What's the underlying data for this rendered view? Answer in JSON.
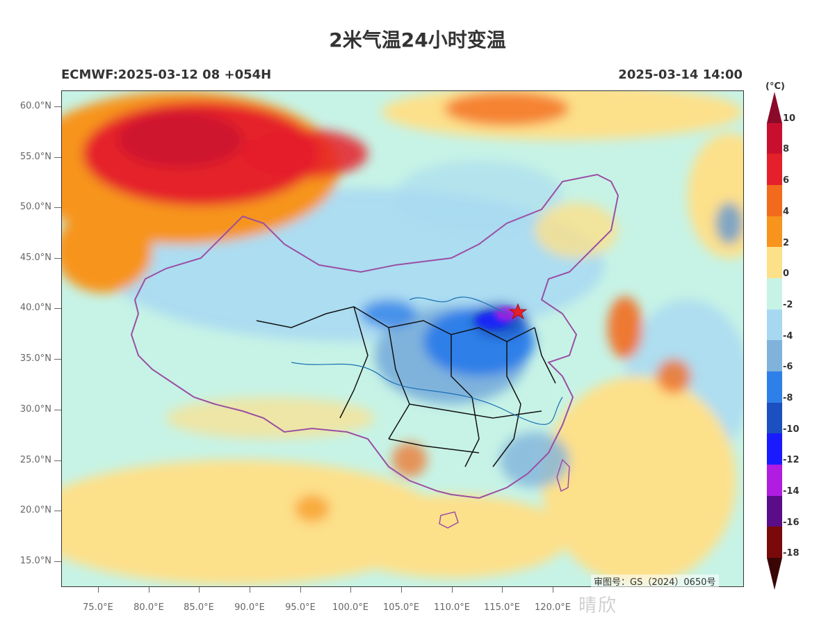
{
  "title": "2米气温24小时变温",
  "model_run": "ECMWF:2025-03-12 08 +054H",
  "valid_time": "2025-03-14 14:00",
  "map": {
    "lat_ticks": [
      "60.0°N",
      "55.0°N",
      "50.0°N",
      "45.0°N",
      "40.0°N",
      "35.0°N",
      "30.0°N",
      "25.0°N",
      "20.0°N",
      "15.0°N"
    ],
    "lon_ticks": [
      "75.0°E",
      "80.0°E",
      "85.0°E",
      "90.0°E",
      "95.0°E",
      "100.0°E",
      "105.0°E",
      "110.0°E",
      "115.0°E",
      "120.0°E"
    ],
    "marker": "star",
    "approval_number": "审图号：GS（2024）0650号"
  },
  "legend": {
    "unit": "(°C)",
    "levels": [
      "10",
      "8",
      "6",
      "4",
      "2",
      "0",
      "-2",
      "-4",
      "-6",
      "-8",
      "-10",
      "-12",
      "-14",
      "-16",
      "-18"
    ],
    "colors": [
      "#8b0a2a",
      "#c8102e",
      "#e5202a",
      "#f26b1d",
      "#f7941d",
      "#fde08a",
      "#c7f3e6",
      "#a7d8f2",
      "#7fb3dc",
      "#2f7fe8",
      "#1c4fc0",
      "#1a1aff",
      "#b01ce0",
      "#5a0d86",
      "#7a0a0a",
      "#3a0505"
    ]
  },
  "watermark": "晴欣"
}
